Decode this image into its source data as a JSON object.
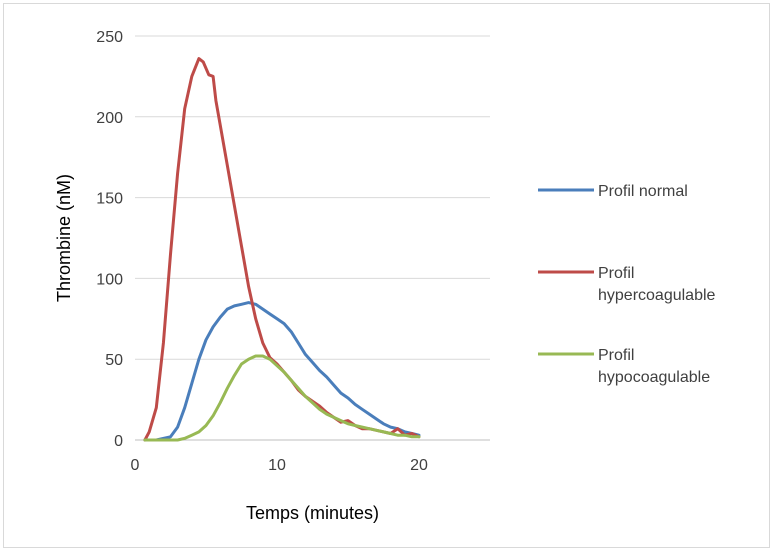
{
  "chart_data": {
    "type": "line",
    "title": "",
    "xlabel": "Temps (minutes)",
    "ylabel": "Thrombine (nM)",
    "xlim": [
      0,
      25
    ],
    "ylim": [
      0,
      250
    ],
    "xticks": [
      0,
      10,
      20
    ],
    "yticks": [
      0,
      50,
      100,
      150,
      200,
      250
    ],
    "grid": "horizontal",
    "legend_position": "right",
    "series": [
      {
        "name": "Profil normal",
        "color": "#4a7ebb",
        "x": [
          0.7,
          1.5,
          2.5,
          3,
          3.5,
          4,
          4.5,
          5,
          5.5,
          6,
          6.5,
          7,
          7.5,
          8,
          8.5,
          9,
          9.5,
          10,
          10.5,
          11,
          11.5,
          12,
          12.5,
          13,
          13.5,
          14,
          14.5,
          15,
          15.5,
          16,
          16.5,
          17,
          17.5,
          18,
          18.5,
          19,
          19.5,
          20
        ],
        "y": [
          0,
          0,
          2,
          8,
          20,
          35,
          50,
          62,
          70,
          76,
          81,
          83,
          84,
          85,
          84,
          81,
          78,
          75,
          72,
          67,
          60,
          53,
          48,
          43,
          39,
          34,
          29,
          26,
          22,
          19,
          16,
          13,
          10,
          8,
          7,
          5,
          4,
          3
        ]
      },
      {
        "name": "Profil hypercoagulable",
        "color": "#be4b48",
        "x": [
          0.7,
          1,
          1.5,
          2,
          2.5,
          3,
          3.5,
          4,
          4.5,
          4.8,
          5.2,
          5.5,
          5.7,
          6,
          6.5,
          7,
          7.5,
          8,
          8.5,
          9,
          9.5,
          10,
          10.5,
          11,
          11.5,
          12,
          12.5,
          13,
          13.5,
          14,
          14.5,
          15,
          15.5,
          16,
          16.5,
          17,
          17.5,
          18,
          18.5,
          19,
          19.5,
          20
        ],
        "y": [
          0,
          5,
          20,
          60,
          115,
          165,
          205,
          225,
          236,
          234,
          226,
          225,
          210,
          195,
          170,
          145,
          120,
          95,
          75,
          60,
          51,
          47,
          42,
          37,
          31,
          27,
          24,
          21,
          17,
          14,
          11,
          12,
          9,
          7,
          7,
          6,
          5,
          4,
          7,
          3,
          4,
          2
        ]
      },
      {
        "name": "Profil hypocoagulable",
        "color": "#98b954",
        "x": [
          0.7,
          2,
          3,
          3.5,
          4,
          4.5,
          5,
          5.5,
          6,
          6.5,
          7,
          7.5,
          8,
          8.5,
          9,
          9.5,
          10,
          10.5,
          11,
          11.5,
          12,
          12.5,
          13,
          13.5,
          14,
          14.5,
          15,
          15.5,
          16,
          16.5,
          17,
          17.5,
          18,
          18.5,
          19,
          19.5,
          20
        ],
        "y": [
          0,
          0,
          0,
          1,
          3,
          5,
          9,
          15,
          23,
          32,
          40,
          47,
          50,
          52,
          52,
          50,
          46,
          42,
          37,
          32,
          27,
          23,
          19,
          16,
          14,
          12,
          10,
          9,
          8,
          7,
          6,
          5,
          4,
          3,
          3,
          2,
          2
        ]
      }
    ]
  }
}
